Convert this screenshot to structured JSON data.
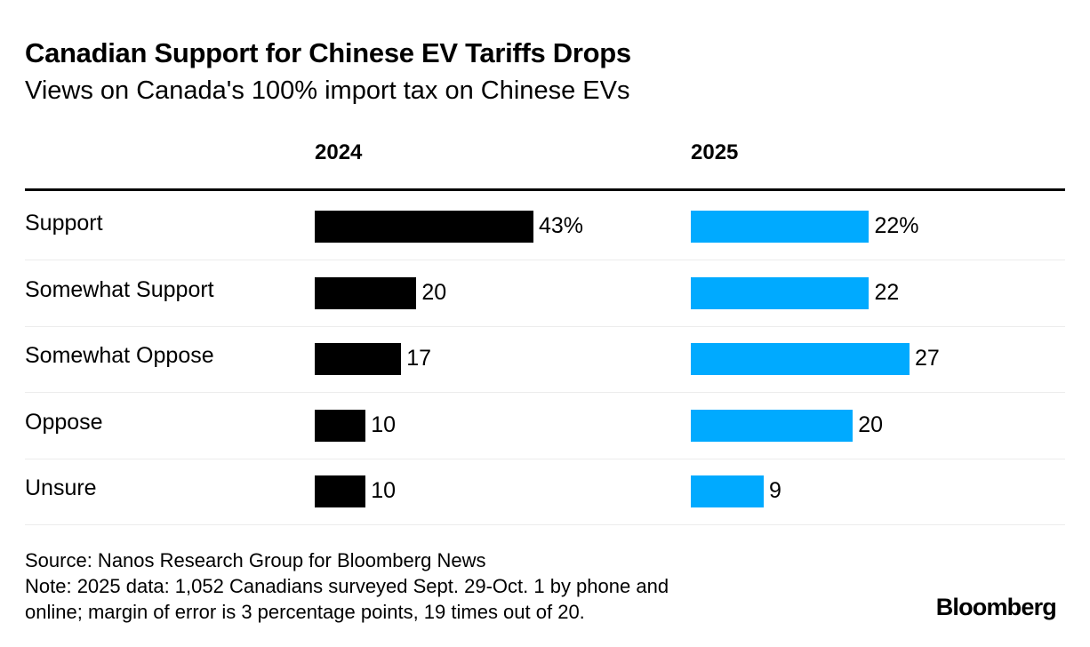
{
  "chart_data": {
    "type": "bar",
    "orientation": "horizontal",
    "title": "Canadian Support for Chinese EV Tariffs Drops",
    "subtitle": "Views on Canada's 100% import tax on Chinese EVs",
    "categories": [
      "Support",
      "Somewhat Support",
      "Somewhat Oppose",
      "Oppose",
      "Unsure"
    ],
    "series": [
      {
        "name": "2024",
        "color": "#000000",
        "values": [
          43,
          20,
          17,
          10,
          10
        ],
        "labels": [
          "43%",
          "20",
          "17",
          "10",
          "10"
        ]
      },
      {
        "name": "2025",
        "color": "#00aaff",
        "values": [
          22,
          22,
          27,
          20,
          9
        ],
        "labels": [
          "22%",
          "22",
          "27",
          "20",
          "9"
        ]
      }
    ],
    "unit": "%",
    "source": "Source: Nanos Research Group for Bloomberg News",
    "note_lines": [
      "Note: 2025 data: 1,052 Canadians surveyed Sept. 29-Oct. 1 by phone and",
      "online; margin of error is 3 percentage points, 19 times out of 20."
    ],
    "brand": "Bloomberg"
  }
}
